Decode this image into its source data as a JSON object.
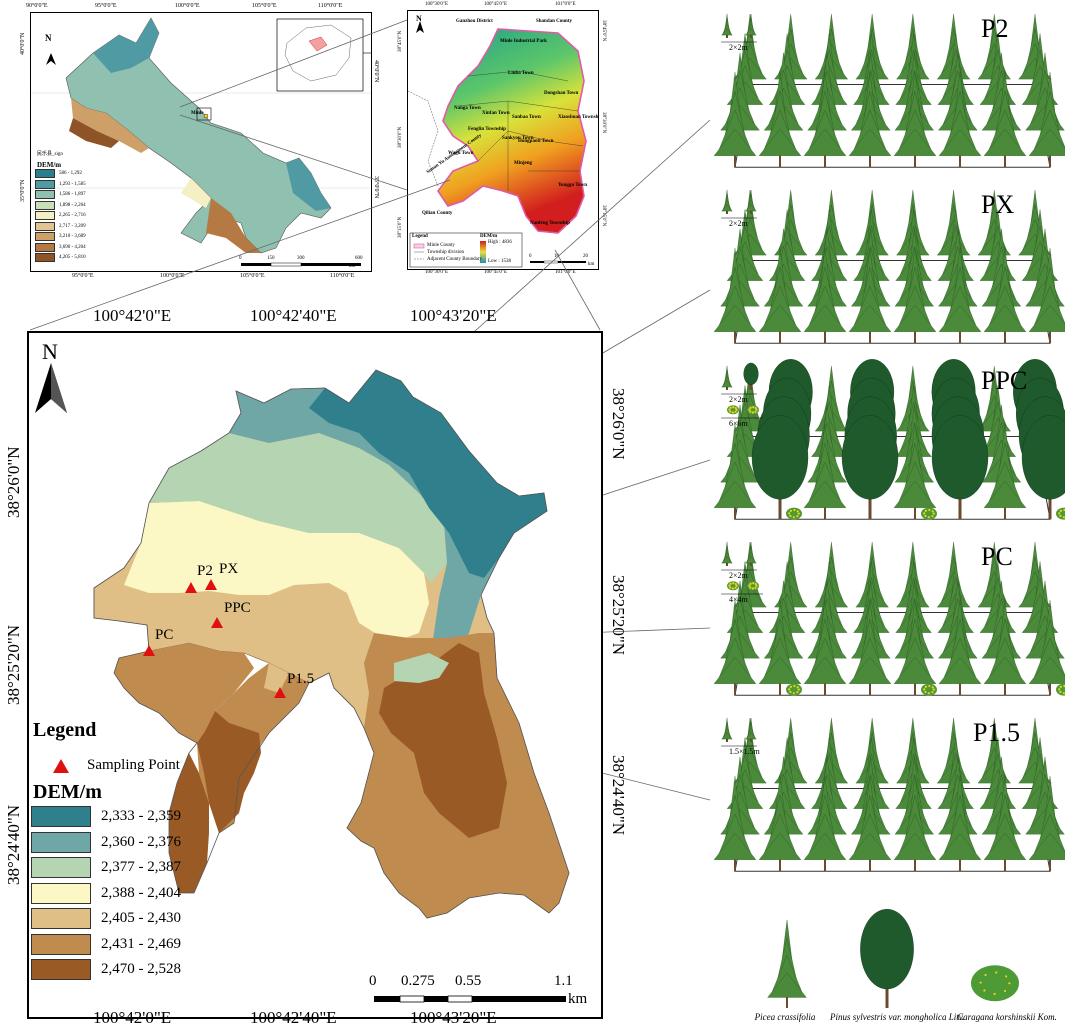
{
  "overview_map": {
    "coords_top": [
      "90°0'0\"E",
      "95°0'0\"E",
      "100°0'0\"E",
      "105°0'0\"E",
      "110°0'0\"E"
    ],
    "coords_bottom": [
      "95°0'0\"E",
      "100°0'0\"E",
      "105°0'0\"E",
      "110°0'0\"E"
    ],
    "coords_left": [
      "40°0'0\"N",
      "35°0'0\"N"
    ],
    "coords_right": [
      "40°0'0\"N",
      "35°0'0\"N"
    ],
    "north": "N",
    "site_label": "Minle",
    "point_legend": "民乐县_sign",
    "dem_title": "DEM/m",
    "dem_classes": [
      {
        "label": "586 - 1,292",
        "color": "#2a7f8f"
      },
      {
        "label": "1,293 - 1,585",
        "color": "#4f9aa3"
      },
      {
        "label": "1,586 - 1,897",
        "color": "#8fc0b0"
      },
      {
        "label": "1,898 - 2,264",
        "color": "#c9dfb8"
      },
      {
        "label": "2,265 - 2,716",
        "color": "#f5efc4"
      },
      {
        "label": "2,717 - 3,209",
        "color": "#e2c394"
      },
      {
        "label": "3,210 - 3,689",
        "color": "#cf9f68"
      },
      {
        "label": "3,690 - 4,204",
        "color": "#b57a43"
      },
      {
        "label": "4,205 - 5,810",
        "color": "#8e5428"
      }
    ],
    "scale_labels": [
      "0",
      "150",
      "300",
      "600"
    ],
    "scale_unit": "km"
  },
  "county_map": {
    "coords_top": [
      "100°30'0\"E",
      "100°45'0\"E",
      "101°0'0\"E"
    ],
    "coords_bottom": [
      "100°30'0\"E",
      "100°45'0\"E",
      "101°0'0\"E"
    ],
    "coords_left": [
      "38°45'0\"N",
      "38°30'0\"N",
      "38°15'0\"N"
    ],
    "coords_right": [
      "38°45'0\"N",
      "38°30'0\"N",
      "38°15'0\"N"
    ],
    "north": "N",
    "places": [
      {
        "name": "Ganzhou District"
      },
      {
        "name": "Shandan County"
      },
      {
        "name": "Minle Industrial Park"
      },
      {
        "name": "Liuba Town"
      },
      {
        "name": "Nanga Town"
      },
      {
        "name": "Xinfan Town"
      },
      {
        "name": "Sanbao Town"
      },
      {
        "name": "Dongshan Town"
      },
      {
        "name": "Xiaoshuan Township"
      },
      {
        "name": "Fenglin Township"
      },
      {
        "name": "Sankyou Town"
      },
      {
        "name": "Hongpaoti Town"
      },
      {
        "name": "Wagu Town"
      },
      {
        "name": "Sunan Yu Autonomous County"
      },
      {
        "name": "Minjeng"
      },
      {
        "name": "Yonggu Town"
      },
      {
        "name": "Qilian County"
      },
      {
        "name": "Nanfeng Township"
      }
    ],
    "legend_title": "Legend",
    "legend_items": [
      "Minle County",
      "Township division",
      "Adjacent County Boundary"
    ],
    "dem_title": "DEM/m",
    "dem_high": "High : 4836",
    "dem_low": "Low : 1538",
    "scale_labels": [
      "0",
      "10",
      "20"
    ],
    "scale_unit": "km"
  },
  "main_map": {
    "coords_top": [
      "100°42'0\"E",
      "100°42'40\"E",
      "100°43'20\"E"
    ],
    "coords_bottom": [
      "100°42'0\"E",
      "100°42'40\"E",
      "100°43'20\"E"
    ],
    "coords_left": [
      "38°26'0\"N",
      "38°25'20\"N",
      "38°24'40\"N"
    ],
    "coords_right": [
      "38°26'0\"N",
      "38°25'20\"N",
      "38°24'40\"N"
    ],
    "north": "N",
    "points": [
      {
        "label": "P2"
      },
      {
        "label": "PX"
      },
      {
        "label": "PPC"
      },
      {
        "label": "PC"
      },
      {
        "label": "P1.5"
      }
    ],
    "legend_title": "Legend",
    "legend_point": "Sampling Point",
    "dem_title": "DEM/m",
    "dem_classes": [
      {
        "label": "2,333 - 2,359",
        "color": "#2f7f8d"
      },
      {
        "label": "2,360 - 2,376",
        "color": "#6fa7a6"
      },
      {
        "label": "2,377 - 2,387",
        "color": "#b5d4b2"
      },
      {
        "label": "2,388 - 2,404",
        "color": "#fbf8c6"
      },
      {
        "label": "2,405 - 2,430",
        "color": "#dfbf85"
      },
      {
        "label": "2,431 - 2,469",
        "color": "#c08b4f"
      },
      {
        "label": "2,470 - 2,528",
        "color": "#9a5a26"
      }
    ],
    "scale_labels": [
      "0",
      "0.275",
      "0.55",
      "1.1"
    ],
    "scale_unit": "km"
  },
  "plots": [
    {
      "label": "P2",
      "spacings": [
        "2×2m"
      ]
    },
    {
      "label": "PX",
      "spacings": [
        "2×2m"
      ]
    },
    {
      "label": "PPC",
      "spacings": [
        "2×2m",
        "6×6m"
      ]
    },
    {
      "label": "PC",
      "spacings": [
        "2×2m",
        "4×4m"
      ]
    },
    {
      "label": "P1.5",
      "spacings": [
        "1.5×1.5m"
      ]
    }
  ],
  "species": [
    {
      "name": "Picea crassifolia"
    },
    {
      "name": "Pinus sylvestris var. mongholica Litv."
    },
    {
      "name": "Caragana korshinskii Kom."
    }
  ],
  "colors": {
    "tree_light": "#4a8a3a",
    "tree_dark": "#1f5a2c",
    "trunk": "#6b4a2f",
    "shrub": "#4e9a34",
    "flower": "#f0d020",
    "point": "#e01010"
  }
}
